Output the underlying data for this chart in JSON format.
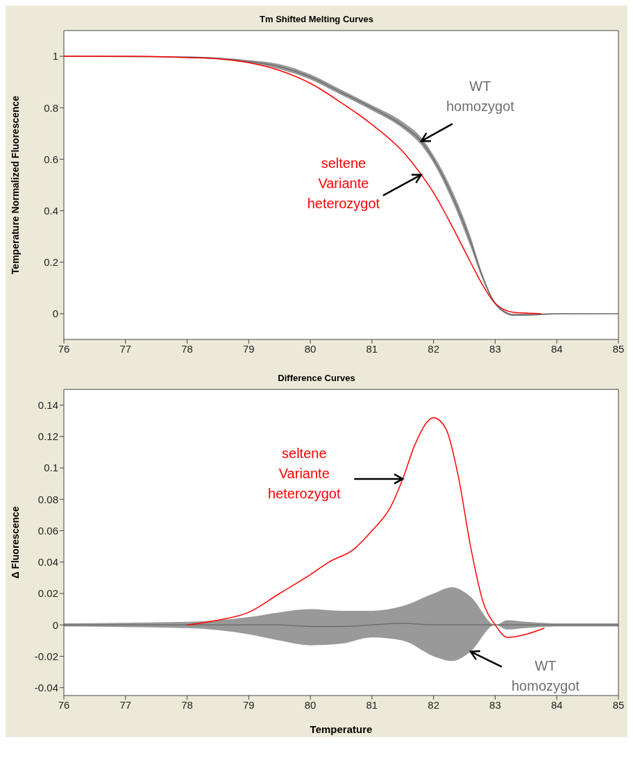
{
  "chart_data": [
    {
      "type": "line",
      "title": "Tm Shifted Melting Curves",
      "ylabel": "Temperature Normalized Fluorescence",
      "xlim": [
        76,
        85
      ],
      "xticks": [
        76,
        77,
        78,
        79,
        80,
        81,
        82,
        83,
        84,
        85
      ],
      "ylim": [
        -0.1,
        1.1
      ],
      "yticks": [
        0,
        0.2,
        0.4,
        0.6,
        0.8,
        1
      ],
      "grid": false,
      "marker": "none",
      "line_style": "solid",
      "series": [
        {
          "color": "#6e6e6e",
          "x": [
            76,
            78,
            79,
            79.5,
            80,
            80.5,
            81,
            81.5,
            81.8,
            82,
            82.3,
            82.6,
            82.8,
            83,
            83.3,
            83.5,
            84,
            85
          ],
          "values": [
            1,
            0.997,
            0.98,
            0.96,
            0.92,
            0.86,
            0.8,
            0.73,
            0.67,
            0.6,
            0.46,
            0.28,
            0.14,
            0.04,
            -0.005,
            -0.005,
            0,
            0
          ],
          "lower": [
            1,
            0.995,
            0.975,
            0.95,
            0.91,
            0.85,
            0.79,
            0.72,
            0.655,
            0.585,
            0.44,
            0.26,
            0.13,
            0.035,
            -0.008,
            -0.008,
            -0.002,
            0
          ],
          "upper": [
            1,
            0.999,
            0.985,
            0.97,
            0.93,
            0.87,
            0.81,
            0.745,
            0.685,
            0.615,
            0.48,
            0.3,
            0.15,
            0.045,
            0,
            0,
            0.001,
            0
          ]
        },
        {
          "color": "#ff0000",
          "x": [
            76,
            77,
            78,
            78.5,
            79,
            79.5,
            80,
            80.5,
            81,
            81.5,
            81.8,
            82,
            82.3,
            82.6,
            82.8,
            83,
            83.3,
            83.75
          ],
          "values": [
            1,
            1,
            0.995,
            0.99,
            0.975,
            0.945,
            0.895,
            0.82,
            0.735,
            0.63,
            0.54,
            0.47,
            0.34,
            0.2,
            0.11,
            0.04,
            0.005,
            0
          ]
        }
      ],
      "annotations": [
        {
          "text": "WT\nhomozygot",
          "x": 81.8,
          "y": 0.67
        },
        {
          "text": "seltene\nVariante\nheterozygot",
          "x": 81.8,
          "y": 0.54
        }
      ]
    },
    {
      "type": "line",
      "title": "Difference Curves",
      "xlabel": "Temperature",
      "ylabel": "Δ Fluorescence",
      "xlim": [
        76,
        85
      ],
      "xticks": [
        76,
        77,
        78,
        79,
        80,
        81,
        82,
        83,
        84,
        85
      ],
      "ylim": [
        -0.045,
        0.15
      ],
      "yticks": [
        -0.04,
        -0.02,
        0,
        0.02,
        0.04,
        0.06,
        0.08,
        0.1,
        0.12,
        0.14
      ],
      "grid": false,
      "marker": "none",
      "line_style": "solid",
      "series": [
        {
          "color": "#6e6e6e",
          "x": [
            76,
            78,
            79,
            79.5,
            80,
            80.5,
            81,
            81.5,
            82,
            82.3,
            82.6,
            83,
            83.2,
            83.5,
            84,
            85
          ],
          "values": [
            0,
            0,
            0,
            0,
            -0.001,
            -0.001,
            0,
            0.001,
            0,
            0,
            0,
            0,
            0,
            0,
            0,
            0
          ],
          "lower": [
            -0.001,
            -0.002,
            -0.006,
            -0.01,
            -0.013,
            -0.012,
            -0.008,
            -0.01,
            -0.02,
            -0.023,
            -0.017,
            0,
            -0.003,
            -0.002,
            -0.001,
            -0.001
          ],
          "upper": [
            0.001,
            0.002,
            0.005,
            0.008,
            0.01,
            0.009,
            0.009,
            0.012,
            0.02,
            0.024,
            0.018,
            0,
            0.003,
            0.002,
            0.001,
            0.001
          ]
        },
        {
          "color": "#ff0000",
          "x": [
            78,
            78.5,
            79,
            79.5,
            80,
            80.3,
            80.7,
            81,
            81.3,
            81.5,
            81.7,
            82,
            82.2,
            82.4,
            82.6,
            82.8,
            83,
            83.2,
            83.5,
            83.8
          ],
          "values": [
            0,
            0.003,
            0.008,
            0.02,
            0.032,
            0.04,
            0.048,
            0.06,
            0.075,
            0.093,
            0.115,
            0.132,
            0.125,
            0.095,
            0.05,
            0.015,
            0,
            -0.008,
            -0.006,
            -0.002
          ]
        }
      ],
      "annotations": [
        {
          "text": "WT\nhomozygot",
          "x": 82.6,
          "y": -0.017
        },
        {
          "text": "seltene\nVariante\nheterozygot",
          "x": 81.5,
          "y": 0.093
        }
      ]
    }
  ]
}
